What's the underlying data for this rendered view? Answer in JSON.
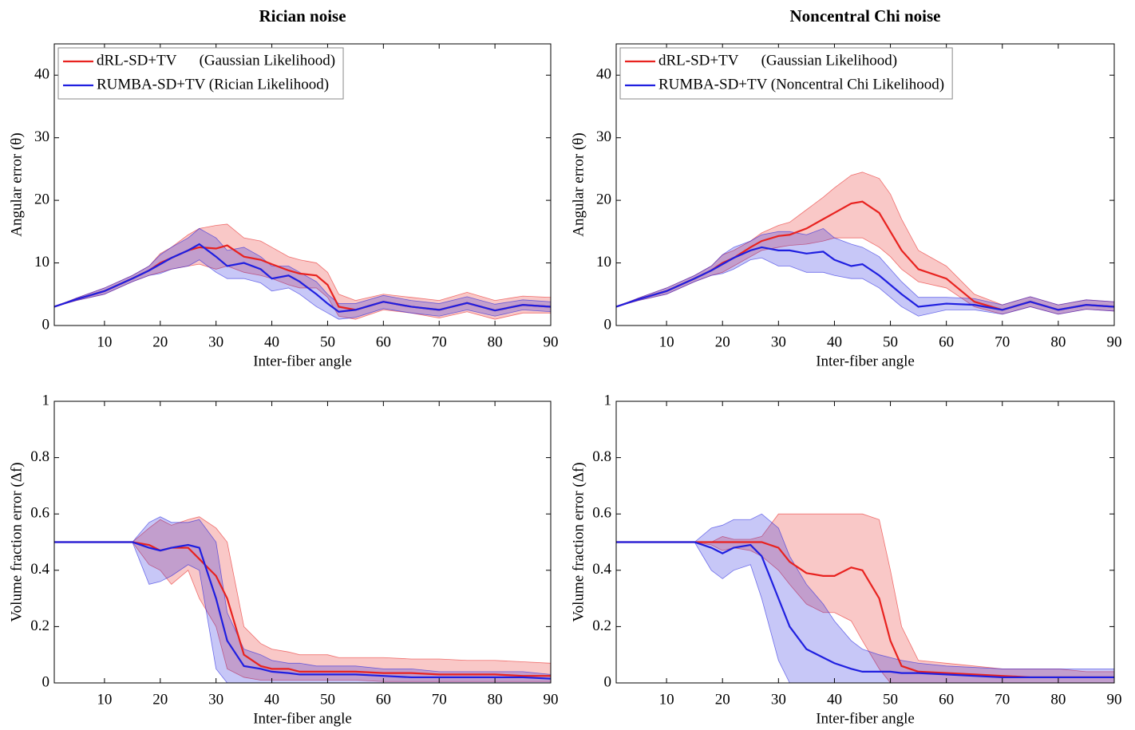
{
  "chart_data": [
    {
      "type": "line",
      "title": "Rician noise",
      "xlabel": "Inter-fiber angle",
      "ylabel": "Angular error (θ)",
      "legend": "upper left",
      "xlim": [
        1,
        90
      ],
      "xticks": [
        10,
        20,
        30,
        40,
        50,
        60,
        70,
        80,
        90
      ],
      "ylim": [
        0,
        45
      ],
      "yticks": [
        0,
        10,
        20,
        30,
        40
      ],
      "x": [
        1,
        5,
        10,
        15,
        18,
        20,
        22,
        25,
        27,
        30,
        32,
        35,
        38,
        40,
        43,
        45,
        48,
        50,
        52,
        55,
        60,
        65,
        70,
        75,
        80,
        85,
        90
      ],
      "series": [
        {
          "name": "dRL-SD+TV      (Gaussian Likelihood)",
          "color": "#e8221f",
          "values": [
            3,
            4.2,
            5.5,
            7.5,
            8.8,
            10,
            10.8,
            12,
            12.5,
            12.3,
            12.8,
            11,
            10.5,
            9.8,
            8.8,
            8.3,
            8,
            6.5,
            3,
            2.5,
            3.8,
            3,
            2.5,
            3.6,
            2.4,
            3.3,
            3
          ],
          "lower": [
            3,
            4,
            5,
            7,
            8,
            8.5,
            9,
            9.5,
            9.8,
            9,
            9.5,
            8.5,
            8,
            7.5,
            6.5,
            6,
            6,
            4.5,
            1.5,
            1,
            2.5,
            2,
            1.2,
            2.2,
            1,
            2,
            2
          ],
          "upper": [
            3,
            4.4,
            6,
            8,
            9.5,
            11.5,
            12.5,
            14.5,
            15.5,
            16,
            16.2,
            14,
            13.5,
            12.5,
            11,
            10.5,
            10,
            8.5,
            5,
            4,
            5,
            4.5,
            4,
            5.3,
            4,
            4.7,
            4.5
          ]
        },
        {
          "name": "RUMBA-SD+TV (Rician Likelihood)",
          "color": "#1f1fe0",
          "values": [
            3,
            4.2,
            5.5,
            7.5,
            8.8,
            9.8,
            10.8,
            12,
            13,
            11,
            9.5,
            10,
            9,
            7.5,
            8,
            7,
            5,
            3.5,
            2.2,
            2.5,
            3.8,
            3,
            2.5,
            3.6,
            2.4,
            3.3,
            3
          ],
          "lower": [
            3,
            4,
            5,
            7,
            8,
            8.3,
            9,
            9.5,
            10.5,
            8.5,
            7.5,
            7.5,
            6.8,
            5.5,
            6,
            5,
            3,
            2,
            1,
            1.3,
            2.7,
            2,
            1.5,
            2.5,
            1.5,
            2.5,
            2.2
          ],
          "upper": [
            3,
            4.4,
            6,
            8,
            9.5,
            11.3,
            12.5,
            14,
            15.5,
            14,
            12,
            12.5,
            11,
            9.5,
            9.5,
            8.5,
            7,
            5,
            3.5,
            3.5,
            4.8,
            4,
            3.5,
            4.6,
            3.4,
            4.1,
            3.8
          ]
        }
      ]
    },
    {
      "type": "line",
      "title": "Noncentral Chi noise",
      "xlabel": "Inter-fiber angle",
      "ylabel": "Angular error (θ)",
      "legend": "upper left",
      "xlim": [
        1,
        90
      ],
      "xticks": [
        10,
        20,
        30,
        40,
        50,
        60,
        70,
        80,
        90
      ],
      "ylim": [
        0,
        45
      ],
      "yticks": [
        0,
        10,
        20,
        30,
        40
      ],
      "x": [
        1,
        5,
        10,
        15,
        18,
        20,
        22,
        25,
        27,
        30,
        32,
        35,
        38,
        40,
        43,
        45,
        48,
        50,
        52,
        55,
        60,
        65,
        70,
        75,
        80,
        85,
        90
      ],
      "series": [
        {
          "name": "dRL-SD+TV      (Gaussian Likelihood)",
          "color": "#e8221f",
          "values": [
            3,
            4.2,
            5.5,
            7.5,
            8.8,
            10,
            10.8,
            12.5,
            13.5,
            14.3,
            14.5,
            15.5,
            17,
            18,
            19.5,
            19.8,
            18,
            15,
            12,
            9,
            7.5,
            3.8,
            2.5,
            3.8,
            2.5,
            3.3,
            3
          ],
          "lower": [
            3,
            4,
            5,
            7,
            8,
            8.5,
            9.5,
            11,
            12,
            12.5,
            12.8,
            13,
            13.5,
            14,
            14,
            14,
            12.5,
            11,
            9,
            7,
            6,
            3,
            1.8,
            3,
            1.8,
            2.6,
            2.3
          ],
          "upper": [
            3,
            4.4,
            6,
            8,
            9.5,
            11.3,
            12,
            13.5,
            14.8,
            16,
            16.5,
            18.5,
            20.5,
            22,
            24,
            24.5,
            23.5,
            21,
            17,
            12,
            9.5,
            5,
            3.3,
            4.6,
            3.3,
            4.1,
            3.8
          ]
        },
        {
          "name": "RUMBA-SD+TV (Noncentral Chi Likelihood)",
          "color": "#1f1fe0",
          "values": [
            3,
            4.2,
            5.5,
            7.5,
            8.8,
            9.8,
            10.8,
            12,
            12.5,
            12,
            12,
            11.5,
            11.8,
            10.5,
            9.5,
            9.8,
            8,
            6.5,
            5,
            3,
            3.5,
            3.3,
            2.5,
            3.8,
            2.5,
            3.3,
            3
          ],
          "lower": [
            3,
            4,
            5,
            7,
            8,
            8.3,
            9,
            10.5,
            10.8,
            9.5,
            9.5,
            8.5,
            8.5,
            8,
            7.5,
            7.5,
            6,
            4.5,
            3,
            1.5,
            2.5,
            2.5,
            1.8,
            3,
            1.8,
            2.6,
            2.3
          ],
          "upper": [
            3,
            4.4,
            6,
            8,
            9.5,
            11.3,
            12.5,
            13.5,
            14.5,
            15,
            15,
            14.5,
            15.5,
            14,
            13,
            12.5,
            11,
            9,
            7,
            4.5,
            4.5,
            4.3,
            3.3,
            4.6,
            3.3,
            4.1,
            3.8
          ]
        }
      ]
    },
    {
      "type": "line",
      "xlabel": "Inter-fiber angle",
      "ylabel": "Volume fraction error (Δf)",
      "xlim": [
        1,
        90
      ],
      "xticks": [
        10,
        20,
        30,
        40,
        50,
        60,
        70,
        80,
        90
      ],
      "ylim": [
        0,
        1
      ],
      "yticks": [
        0,
        0.2,
        0.4,
        0.6,
        0.8,
        1
      ],
      "x": [
        1,
        5,
        10,
        15,
        18,
        20,
        22,
        25,
        27,
        30,
        32,
        35,
        38,
        40,
        43,
        45,
        48,
        50,
        52,
        55,
        60,
        65,
        70,
        75,
        80,
        85,
        90
      ],
      "series": [
        {
          "color": "#e8221f",
          "values": [
            0.5,
            0.5,
            0.5,
            0.5,
            0.49,
            0.47,
            0.48,
            0.48,
            0.44,
            0.38,
            0.3,
            0.1,
            0.06,
            0.05,
            0.05,
            0.04,
            0.04,
            0.04,
            0.04,
            0.04,
            0.035,
            0.035,
            0.03,
            0.03,
            0.03,
            0.025,
            0.025
          ],
          "lower": [
            0.5,
            0.5,
            0.5,
            0.5,
            0.42,
            0.4,
            0.35,
            0.4,
            0.3,
            0.2,
            0.05,
            0.02,
            0.01,
            0.01,
            0.01,
            0.01,
            0.01,
            0.01,
            0.01,
            0.01,
            0.005,
            0.005,
            0.005,
            0.005,
            0.005,
            0.005,
            0.005
          ],
          "upper": [
            0.5,
            0.5,
            0.5,
            0.5,
            0.55,
            0.58,
            0.56,
            0.58,
            0.59,
            0.55,
            0.5,
            0.2,
            0.14,
            0.12,
            0.11,
            0.1,
            0.1,
            0.1,
            0.09,
            0.09,
            0.09,
            0.085,
            0.085,
            0.08,
            0.08,
            0.075,
            0.07
          ]
        },
        {
          "color": "#1f1fe0",
          "values": [
            0.5,
            0.5,
            0.5,
            0.5,
            0.48,
            0.47,
            0.48,
            0.49,
            0.48,
            0.3,
            0.15,
            0.06,
            0.05,
            0.04,
            0.035,
            0.03,
            0.03,
            0.03,
            0.03,
            0.03,
            0.025,
            0.02,
            0.02,
            0.02,
            0.02,
            0.02,
            0.015
          ],
          "lower": [
            0.5,
            0.5,
            0.5,
            0.5,
            0.35,
            0.36,
            0.38,
            0.42,
            0.4,
            0.05,
            0,
            0,
            0,
            0,
            0,
            0,
            0,
            0,
            0,
            0,
            0,
            0,
            0,
            0,
            0,
            0,
            0
          ],
          "upper": [
            0.5,
            0.5,
            0.5,
            0.5,
            0.57,
            0.59,
            0.57,
            0.57,
            0.58,
            0.5,
            0.25,
            0.12,
            0.1,
            0.08,
            0.07,
            0.07,
            0.06,
            0.06,
            0.06,
            0.06,
            0.05,
            0.05,
            0.04,
            0.04,
            0.04,
            0.04,
            0.03
          ]
        }
      ]
    },
    {
      "type": "line",
      "xlabel": "Inter-fiber angle",
      "ylabel": "Volume fraction error (Δf)",
      "xlim": [
        1,
        90
      ],
      "xticks": [
        10,
        20,
        30,
        40,
        50,
        60,
        70,
        80,
        90
      ],
      "ylim": [
        0,
        1
      ],
      "yticks": [
        0,
        0.2,
        0.4,
        0.6,
        0.8,
        1
      ],
      "x": [
        1,
        5,
        10,
        15,
        18,
        20,
        22,
        25,
        27,
        30,
        32,
        35,
        38,
        40,
        43,
        45,
        48,
        50,
        52,
        55,
        60,
        65,
        70,
        75,
        80,
        85,
        90
      ],
      "series": [
        {
          "color": "#e8221f",
          "values": [
            0.5,
            0.5,
            0.5,
            0.5,
            0.5,
            0.5,
            0.5,
            0.5,
            0.5,
            0.48,
            0.43,
            0.39,
            0.38,
            0.38,
            0.41,
            0.4,
            0.3,
            0.15,
            0.06,
            0.04,
            0.035,
            0.03,
            0.025,
            0.02,
            0.02,
            0.02,
            0.02
          ],
          "lower": [
            0.5,
            0.5,
            0.5,
            0.5,
            0.49,
            0.47,
            0.48,
            0.47,
            0.45,
            0.4,
            0.35,
            0.28,
            0.25,
            0.25,
            0.22,
            0.15,
            0.05,
            0,
            0,
            0,
            0,
            0,
            0,
            0,
            0,
            0,
            0
          ],
          "upper": [
            0.5,
            0.5,
            0.5,
            0.5,
            0.5,
            0.52,
            0.51,
            0.51,
            0.52,
            0.6,
            0.6,
            0.6,
            0.6,
            0.6,
            0.6,
            0.6,
            0.58,
            0.4,
            0.2,
            0.08,
            0.07,
            0.06,
            0.05,
            0.05,
            0.05,
            0.04,
            0.04
          ]
        },
        {
          "color": "#1f1fe0",
          "values": [
            0.5,
            0.5,
            0.5,
            0.5,
            0.48,
            0.46,
            0.48,
            0.49,
            0.45,
            0.3,
            0.2,
            0.12,
            0.09,
            0.07,
            0.05,
            0.04,
            0.04,
            0.04,
            0.035,
            0.035,
            0.03,
            0.025,
            0.02,
            0.02,
            0.02,
            0.02,
            0.02
          ],
          "lower": [
            0.5,
            0.5,
            0.5,
            0.5,
            0.4,
            0.37,
            0.4,
            0.42,
            0.3,
            0.08,
            0,
            0,
            0,
            0,
            0,
            0,
            0,
            0,
            0,
            0,
            0,
            0,
            0,
            0,
            0,
            0,
            0
          ],
          "upper": [
            0.5,
            0.5,
            0.5,
            0.5,
            0.55,
            0.56,
            0.58,
            0.58,
            0.6,
            0.55,
            0.45,
            0.35,
            0.28,
            0.22,
            0.15,
            0.12,
            0.1,
            0.09,
            0.08,
            0.07,
            0.06,
            0.055,
            0.05,
            0.05,
            0.05,
            0.05,
            0.05
          ]
        }
      ]
    }
  ]
}
